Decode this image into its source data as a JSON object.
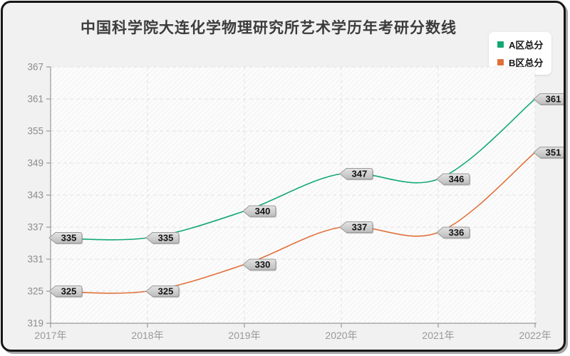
{
  "title": "中国科学院大连化学物理研究所艺术学历年考研分数线",
  "legend": {
    "items": [
      {
        "label": "A区总分",
        "color": "#13a873"
      },
      {
        "label": "B区总分",
        "color": "#e0703a"
      }
    ]
  },
  "chart_data": {
    "type": "line",
    "title": "中国科学院大连化学物理研究所艺术学历年考研分数线",
    "x": [
      "2017年",
      "2018年",
      "2019年",
      "2020年",
      "2021年",
      "2022年"
    ],
    "series": [
      {
        "name": "A区总分",
        "color": "#13a873",
        "values": [
          335,
          335,
          340,
          347,
          346,
          361
        ]
      },
      {
        "name": "B区总分",
        "color": "#e0703a",
        "values": [
          325,
          325,
          330,
          337,
          336,
          351
        ]
      }
    ],
    "ylim": [
      319,
      367
    ],
    "yticks": [
      319,
      325,
      331,
      337,
      343,
      349,
      355,
      361,
      367
    ],
    "grid": true,
    "smooth": true,
    "point_labels": true,
    "legend_position": "top-right",
    "colors": {
      "axis": "#999999",
      "grid": "#e2e2e2",
      "tick_label": "#8c8c8c",
      "label_tag_fill_top": "#e3e3e3",
      "label_tag_fill_bottom": "#bdbdbd",
      "label_tag_border": "#9b9b9b",
      "label_tag_text": "#141414"
    }
  }
}
